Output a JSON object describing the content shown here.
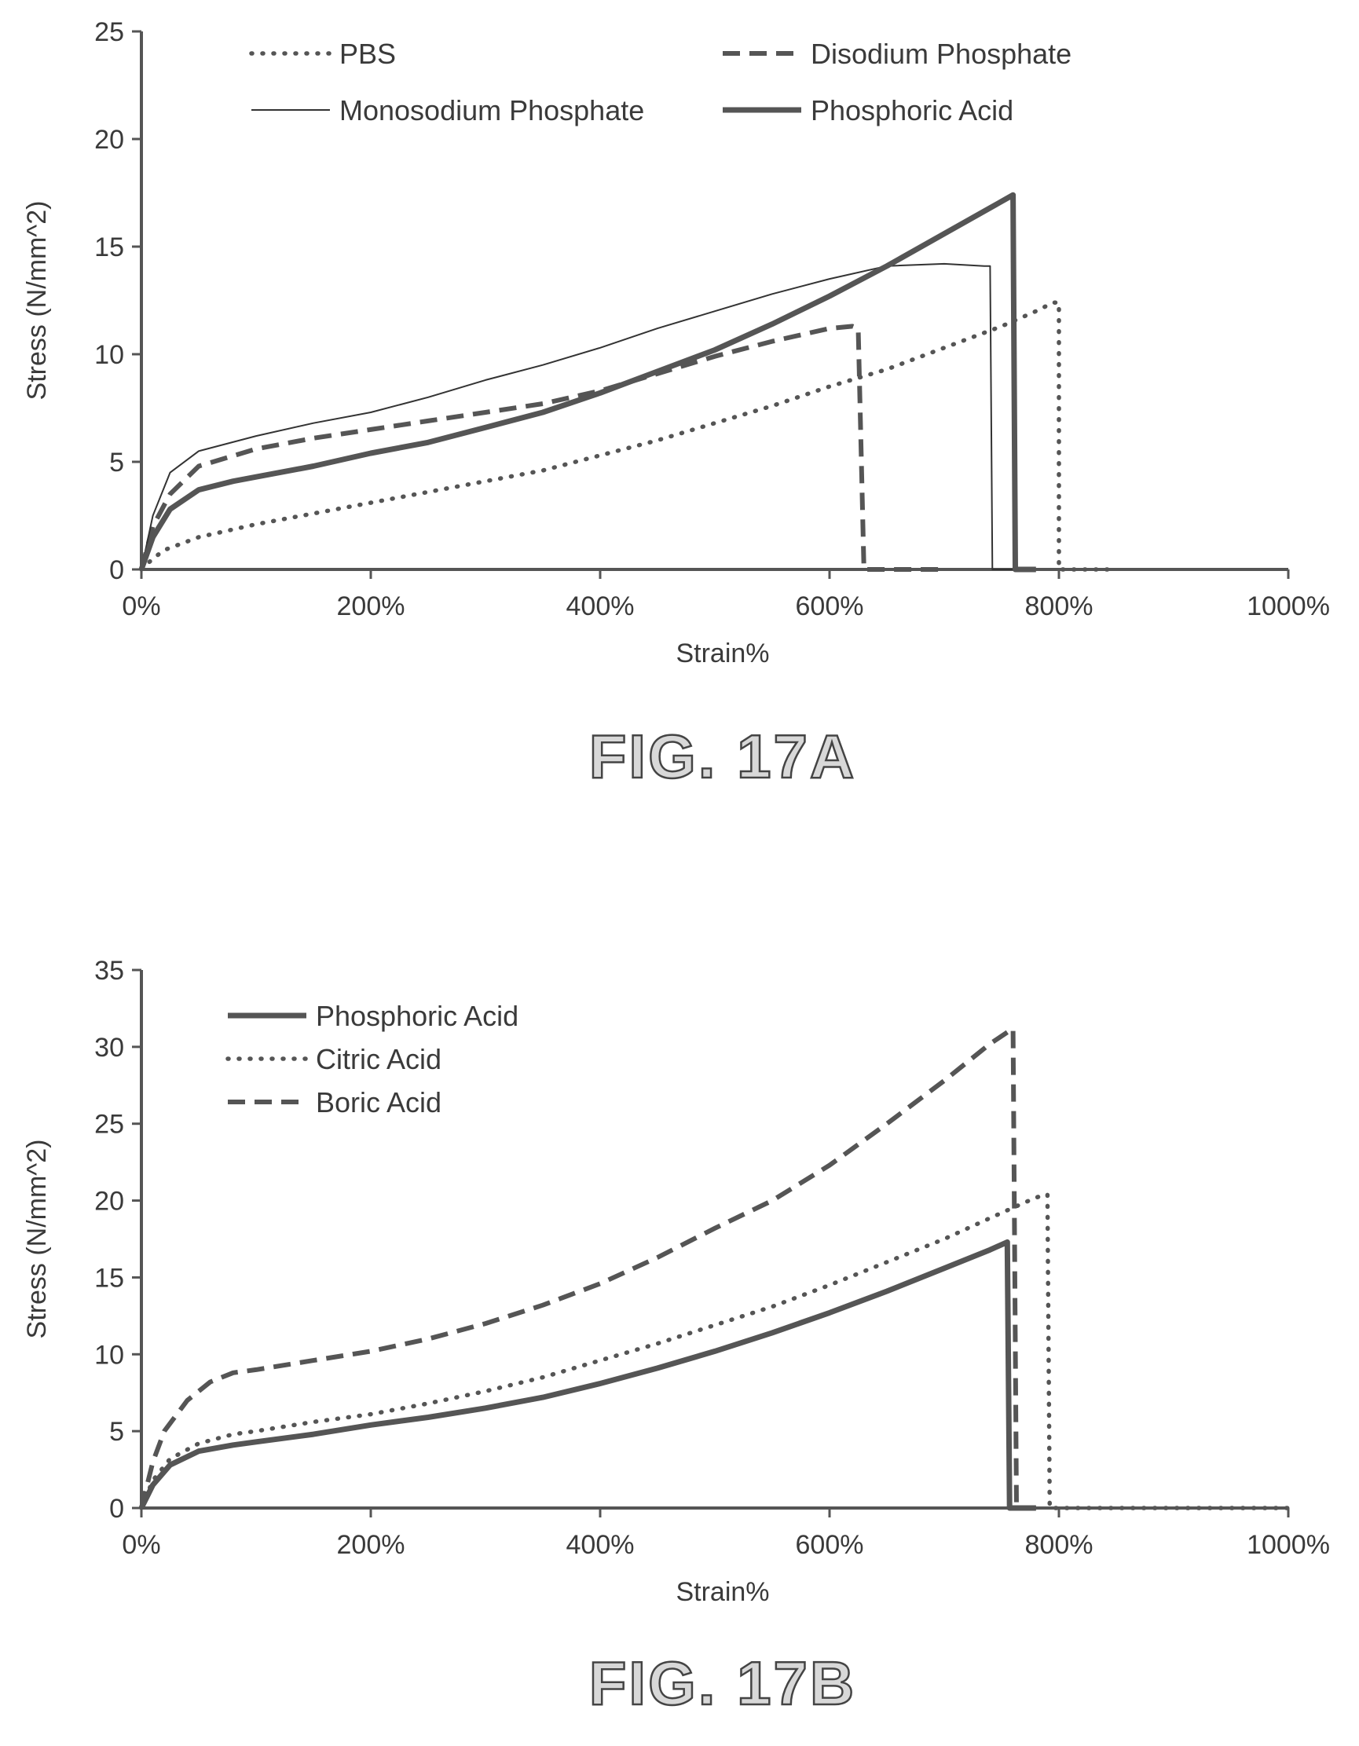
{
  "chart_data": [
    {
      "type": "line",
      "caption": "FIG. 17A",
      "xlabel": "Strain%",
      "ylabel": "Stress (N/mm^2)",
      "xlim": [
        0,
        1000
      ],
      "ylim": [
        0,
        25
      ],
      "xticks": [
        0,
        200,
        400,
        600,
        800,
        1000
      ],
      "xtick_labels": [
        "0%",
        "200%",
        "400%",
        "600%",
        "800%",
        "1000%"
      ],
      "yticks": [
        0,
        5,
        10,
        15,
        20,
        25
      ],
      "ytick_labels": [
        "0",
        "5",
        "10",
        "15",
        "20",
        "25"
      ],
      "grid": false,
      "legend_position": "top",
      "series": [
        {
          "name": "PBS",
          "style": "dotted",
          "x": [
            0,
            10,
            20,
            50,
            100,
            150,
            200,
            250,
            300,
            350,
            400,
            450,
            500,
            550,
            600,
            650,
            700,
            750,
            780,
            795,
            800,
            800,
            820,
            850
          ],
          "y": [
            0,
            0.5,
            0.9,
            1.5,
            2.1,
            2.6,
            3.1,
            3.6,
            4.1,
            4.6,
            5.3,
            6.0,
            6.8,
            7.6,
            8.5,
            9.3,
            10.3,
            11.3,
            12.0,
            12.4,
            12.4,
            0,
            0,
            0
          ]
        },
        {
          "name": "Disodium Phosphate",
          "style": "dashed",
          "x": [
            0,
            10,
            25,
            50,
            100,
            150,
            200,
            250,
            300,
            350,
            400,
            450,
            500,
            550,
            600,
            620,
            625,
            630,
            650,
            700
          ],
          "y": [
            0,
            2.0,
            3.5,
            4.8,
            5.6,
            6.1,
            6.5,
            6.9,
            7.3,
            7.7,
            8.3,
            9.1,
            9.9,
            10.6,
            11.2,
            11.3,
            11.2,
            0,
            0,
            0
          ]
        },
        {
          "name": "Monosodium Phosphate",
          "style": "thin",
          "x": [
            0,
            10,
            25,
            50,
            100,
            150,
            200,
            250,
            300,
            350,
            400,
            450,
            500,
            550,
            600,
            650,
            700,
            735,
            740,
            742,
            760
          ],
          "y": [
            0,
            2.5,
            4.5,
            5.5,
            6.2,
            6.8,
            7.3,
            8.0,
            8.8,
            9.5,
            10.3,
            11.2,
            12.0,
            12.8,
            13.5,
            14.1,
            14.2,
            14.1,
            14.1,
            0,
            0
          ]
        },
        {
          "name": "Phosphoric Acid",
          "style": "thick",
          "x": [
            0,
            10,
            25,
            50,
            80,
            100,
            150,
            200,
            250,
            300,
            350,
            400,
            450,
            500,
            550,
            600,
            650,
            700,
            740,
            760,
            762,
            780
          ],
          "y": [
            0,
            1.5,
            2.8,
            3.7,
            4.1,
            4.3,
            4.8,
            5.4,
            5.9,
            6.6,
            7.3,
            8.2,
            9.2,
            10.2,
            11.4,
            12.7,
            14.1,
            15.6,
            16.8,
            17.4,
            0,
            0
          ]
        }
      ]
    },
    {
      "type": "line",
      "caption": "FIG. 17B",
      "xlabel": "Strain%",
      "ylabel": "Stress (N/mm^2)",
      "xlim": [
        0,
        1000
      ],
      "ylim": [
        0,
        35
      ],
      "xticks": [
        0,
        200,
        400,
        600,
        800,
        1000
      ],
      "xtick_labels": [
        "0%",
        "200%",
        "400%",
        "600%",
        "800%",
        "1000%"
      ],
      "yticks": [
        0,
        5,
        10,
        15,
        20,
        25,
        30,
        35
      ],
      "ytick_labels": [
        "0",
        "5",
        "10",
        "15",
        "20",
        "25",
        "30",
        "35"
      ],
      "grid": false,
      "legend_position": "top-left",
      "series": [
        {
          "name": "Phosphoric Acid",
          "style": "thick",
          "x": [
            0,
            10,
            25,
            50,
            80,
            100,
            150,
            200,
            250,
            300,
            350,
            400,
            450,
            500,
            550,
            600,
            650,
            700,
            740,
            755,
            757,
            780
          ],
          "y": [
            0,
            1.5,
            2.8,
            3.7,
            4.1,
            4.3,
            4.8,
            5.4,
            5.9,
            6.5,
            7.2,
            8.1,
            9.1,
            10.2,
            11.4,
            12.7,
            14.1,
            15.6,
            16.8,
            17.3,
            0,
            0
          ]
        },
        {
          "name": "Citric Acid",
          "style": "dotted",
          "x": [
            0,
            10,
            25,
            50,
            80,
            100,
            150,
            200,
            250,
            300,
            350,
            400,
            450,
            500,
            550,
            600,
            650,
            700,
            750,
            780,
            790,
            792,
            800,
            1000
          ],
          "y": [
            0,
            1.8,
            3.2,
            4.2,
            4.8,
            5.0,
            5.6,
            6.1,
            6.8,
            7.6,
            8.5,
            9.6,
            10.7,
            11.9,
            13.1,
            14.5,
            16.0,
            17.5,
            19.2,
            20.2,
            20.4,
            0,
            0,
            0
          ]
        },
        {
          "name": "Boric Acid",
          "style": "dashed",
          "x": [
            0,
            10,
            20,
            40,
            60,
            80,
            100,
            150,
            200,
            250,
            300,
            350,
            400,
            450,
            500,
            550,
            600,
            650,
            700,
            740,
            760,
            763,
            780
          ],
          "y": [
            0,
            3.0,
            5.0,
            7.0,
            8.2,
            8.8,
            9.0,
            9.6,
            10.2,
            11.0,
            12.0,
            13.2,
            14.6,
            16.3,
            18.2,
            20.0,
            22.3,
            25.0,
            27.8,
            30.2,
            31.2,
            0,
            0
          ]
        }
      ]
    }
  ]
}
